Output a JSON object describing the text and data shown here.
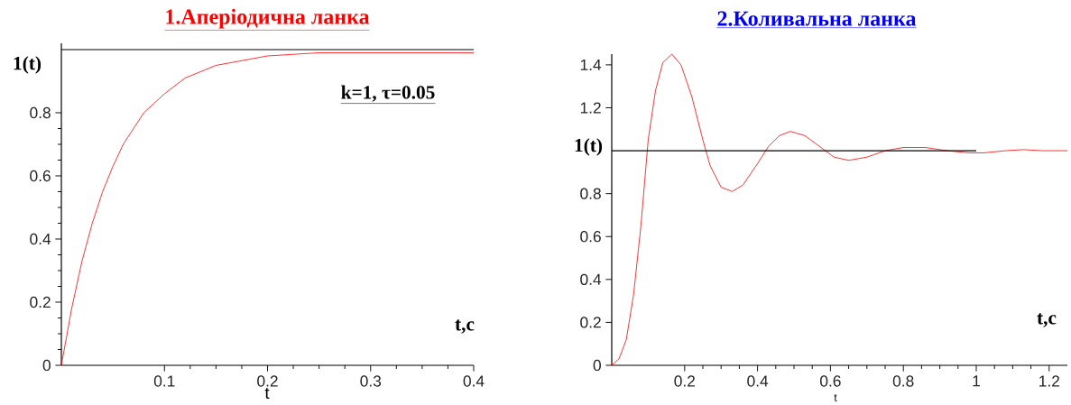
{
  "chart_data": [
    {
      "type": "line",
      "title": "1.Аперіодична ланка",
      "xlabel": "t",
      "annotations": [
        "1(t)",
        "k=1, τ=0.05",
        "t,c"
      ],
      "x": [
        0,
        0.01,
        0.02,
        0.03,
        0.04,
        0.05,
        0.06,
        0.08,
        0.1,
        0.12,
        0.15,
        0.2,
        0.25,
        0.3,
        0.35,
        0.4
      ],
      "series": [
        {
          "color": "#ff0000",
          "values": [
            0,
            0.18,
            0.33,
            0.45,
            0.55,
            0.63,
            0.7,
            0.8,
            0.86,
            0.91,
            0.95,
            0.98,
            0.99,
            0.99,
            0.99,
            0.99
          ]
        }
      ],
      "ref_lines": [
        {
          "axis": "y",
          "value": 1,
          "color": "#000000"
        }
      ],
      "xlim": [
        0,
        0.4
      ],
      "ylim": [
        0,
        1.02
      ],
      "xticks": [
        0.1,
        0.2,
        0.3,
        0.4
      ],
      "yticks": [
        0,
        0.2,
        0.4,
        0.6,
        0.8
      ]
    },
    {
      "type": "line",
      "title": "2.Коливальна ланка",
      "xlabel": "t",
      "annotations": [
        "1(t)",
        "t,c"
      ],
      "x": [
        0,
        0.02,
        0.04,
        0.06,
        0.08,
        0.1,
        0.12,
        0.14,
        0.165,
        0.19,
        0.22,
        0.25,
        0.27,
        0.3,
        0.33,
        0.36,
        0.4,
        0.43,
        0.46,
        0.49,
        0.53,
        0.57,
        0.61,
        0.65,
        0.7,
        0.75,
        0.8,
        0.86,
        0.92,
        0.98,
        1.02,
        1.08,
        1.13,
        1.18,
        1.25
      ],
      "series": [
        {
          "color": "#ff0000",
          "values": [
            0,
            0.03,
            0.12,
            0.33,
            0.65,
            1.05,
            1.28,
            1.41,
            1.45,
            1.4,
            1.25,
            1.05,
            0.93,
            0.83,
            0.81,
            0.84,
            0.94,
            1.02,
            1.07,
            1.09,
            1.07,
            1.02,
            0.97,
            0.955,
            0.97,
            1.0,
            1.015,
            1.015,
            1.0,
            0.99,
            0.99,
            1.0,
            1.005,
            1.0,
            1.0
          ]
        },
        {
          "color": "#000000",
          "x": [
            0,
            1
          ],
          "values": [
            1,
            1
          ]
        }
      ],
      "xlim": [
        0,
        1.25
      ],
      "ylim": [
        0,
        1.45
      ],
      "xticks": [
        0.2,
        0.4,
        0.6,
        0.8,
        1,
        1.2
      ],
      "yticks": [
        0,
        0.2,
        0.4,
        0.6,
        0.8,
        1.2,
        1.4
      ]
    }
  ]
}
